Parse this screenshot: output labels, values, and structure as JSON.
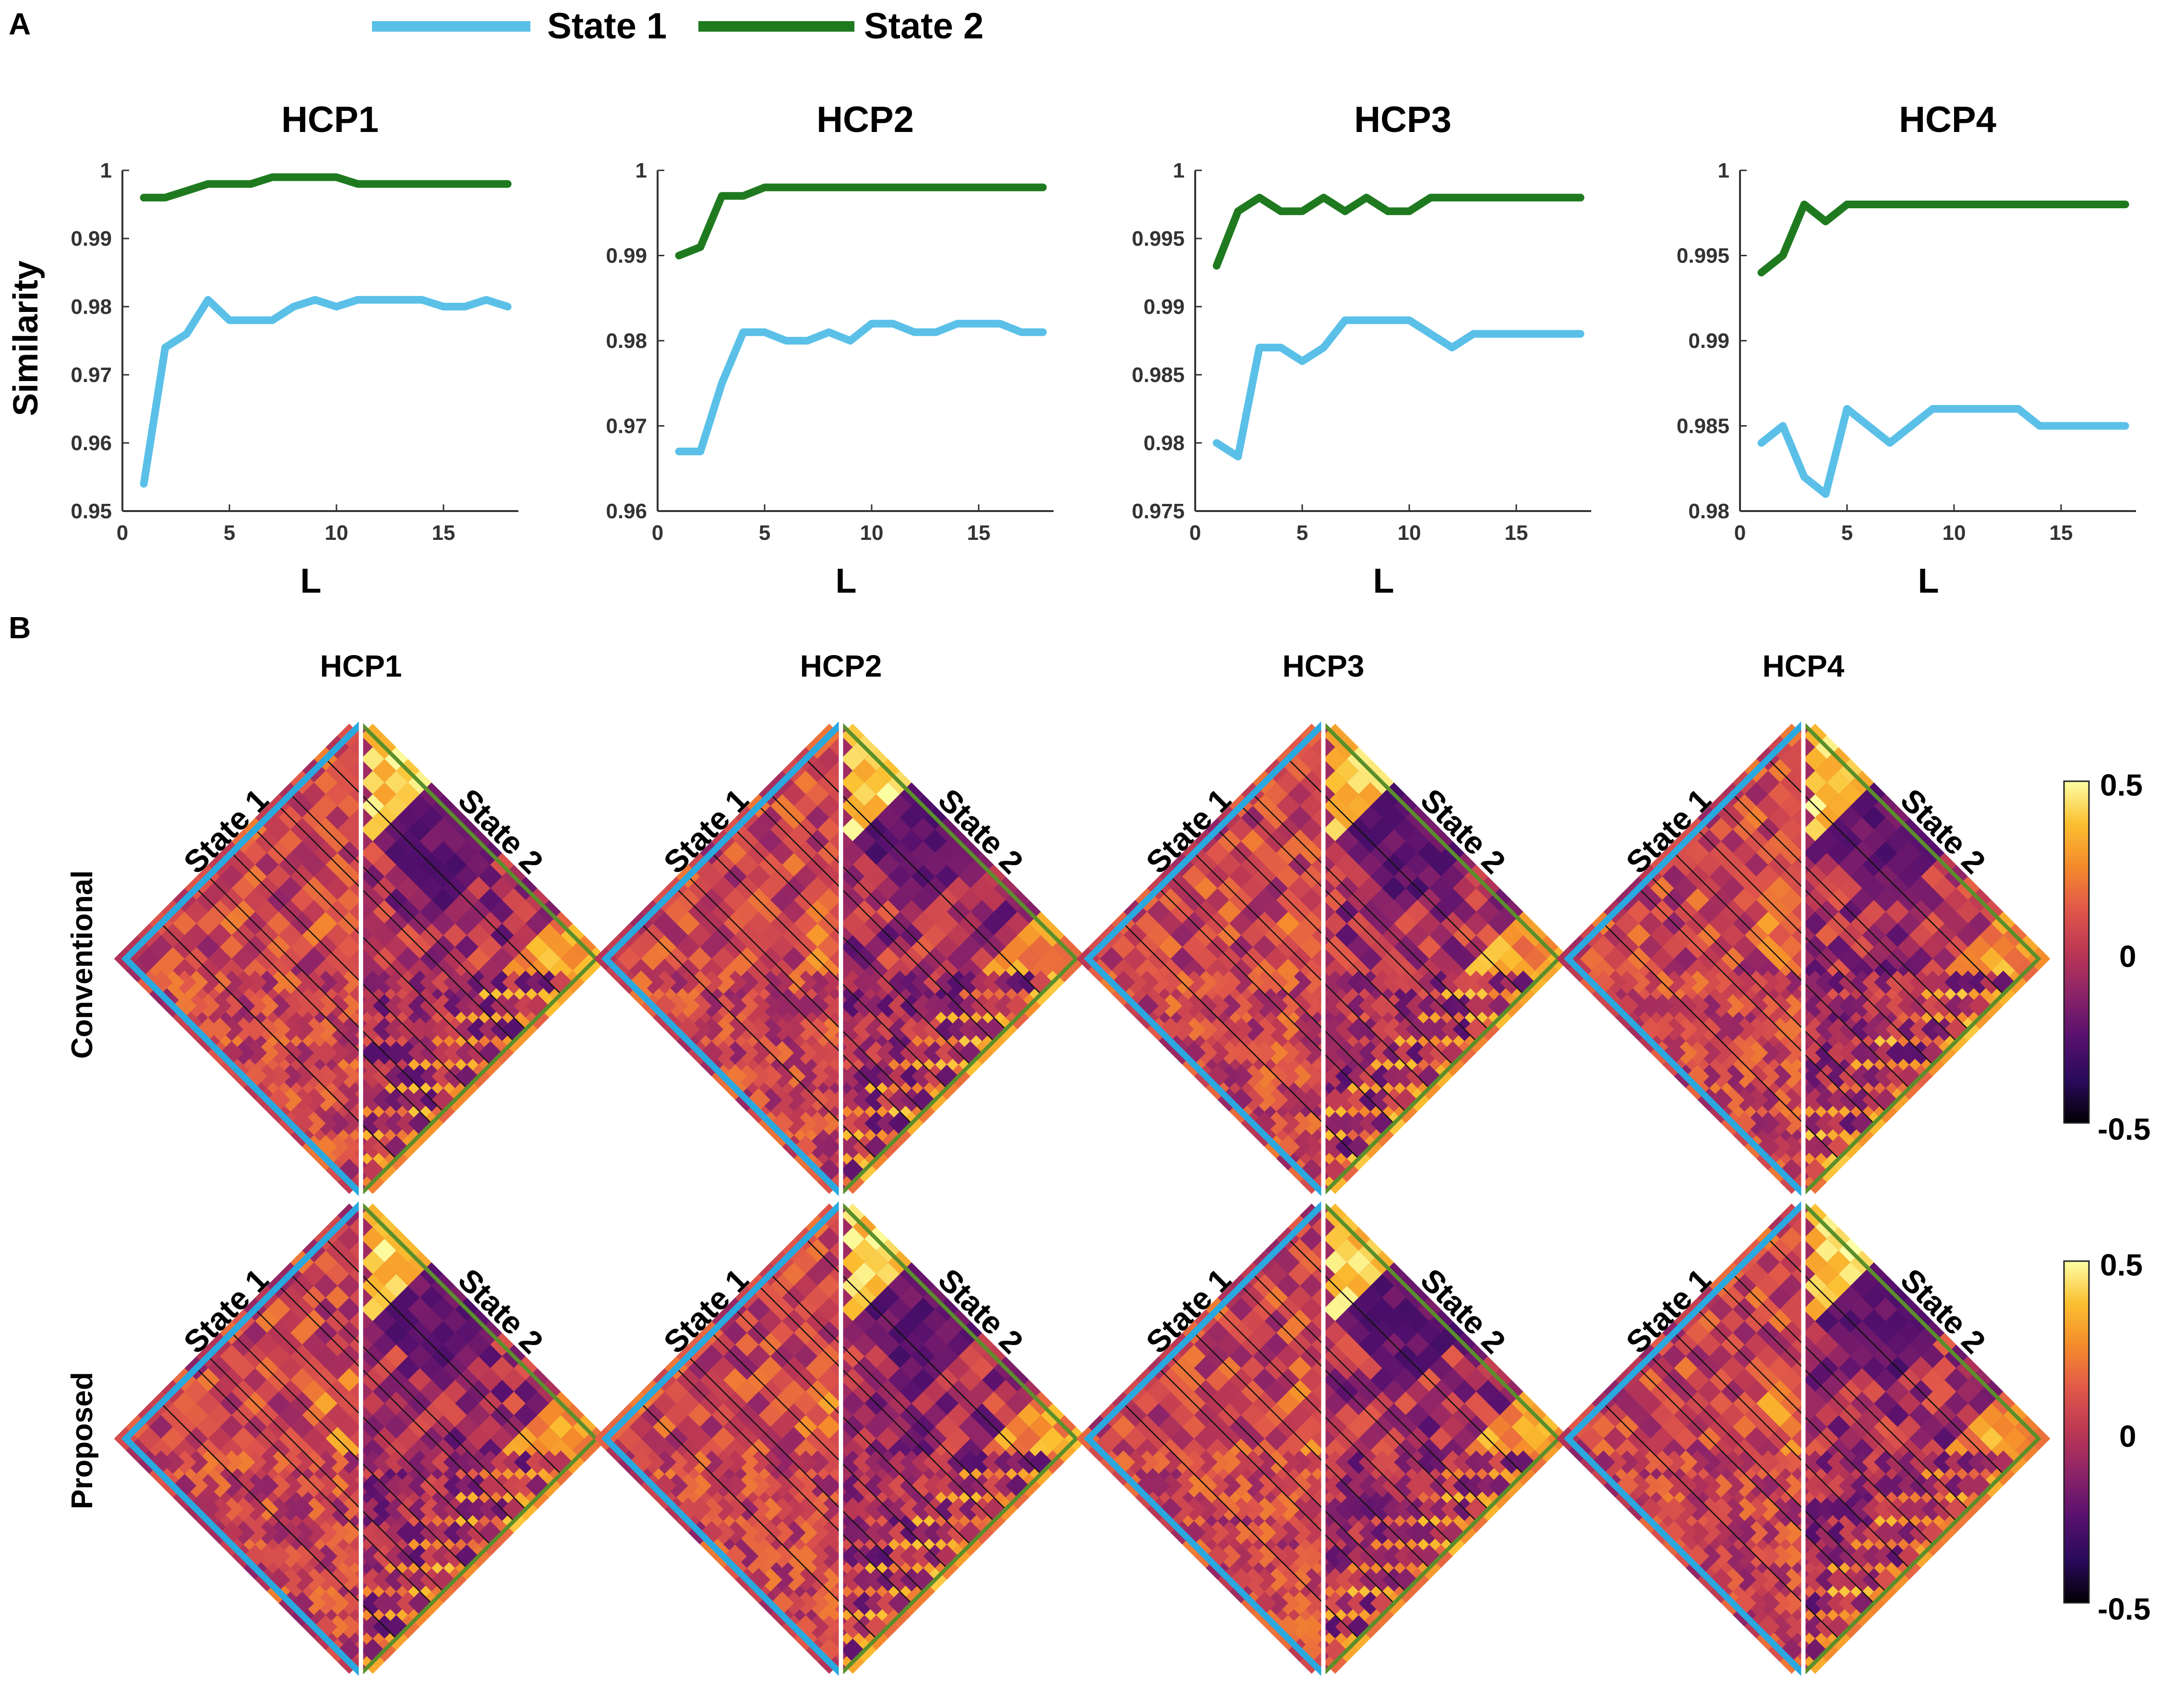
{
  "panels": {
    "a": "A",
    "b": "B"
  },
  "legend": [
    {
      "label": "State 1",
      "color": "#5bc0e8"
    },
    {
      "label": "State 2",
      "color": "#1f7a1f"
    }
  ],
  "colors": {
    "state1": "#5bc0e8",
    "state2": "#1f7a1f",
    "heatmap_border_state1": "#29a9e0",
    "heatmap_border_state2": "#5a8f2b",
    "colormap": [
      "#000004",
      "#2a0a5c",
      "#56106e",
      "#8c2369",
      "#bb3754",
      "#e1574a",
      "#f58a2c",
      "#fbbf2f",
      "#fcffa4"
    ]
  },
  "chart_data": [
    {
      "type": "line",
      "title": "HCP1",
      "xlabel": "L",
      "ylabel": "Similarity",
      "xlim": [
        0,
        18.5
      ],
      "ylim": [
        0.95,
        1
      ],
      "xticks": [
        0,
        5,
        10,
        15
      ],
      "yticks": [
        "0.95",
        "0.96",
        "0.97",
        "0.98",
        "0.99",
        "1"
      ],
      "x": [
        1,
        2,
        3,
        4,
        5,
        6,
        7,
        8,
        9,
        10,
        11,
        12,
        13,
        14,
        15,
        16,
        17,
        18
      ],
      "series": [
        {
          "name": "State 1",
          "values": [
            0.954,
            0.974,
            0.976,
            0.981,
            0.978,
            0.978,
            0.978,
            0.98,
            0.981,
            0.98,
            0.981,
            0.981,
            0.981,
            0.981,
            0.98,
            0.98,
            0.981,
            0.98
          ]
        },
        {
          "name": "State 2",
          "values": [
            0.996,
            0.996,
            0.997,
            0.998,
            0.998,
            0.998,
            0.999,
            0.999,
            0.999,
            0.999,
            0.998,
            0.998,
            0.998,
            0.998,
            0.998,
            0.998,
            0.998,
            0.998
          ]
        }
      ]
    },
    {
      "type": "line",
      "title": "HCP2",
      "xlabel": "L",
      "ylabel": "",
      "xlim": [
        0,
        18.5
      ],
      "ylim": [
        0.96,
        1
      ],
      "xticks": [
        0,
        5,
        10,
        15
      ],
      "yticks": [
        "0.96",
        "0.97",
        "0.98",
        "0.99",
        "1"
      ],
      "x": [
        1,
        2,
        3,
        4,
        5,
        6,
        7,
        8,
        9,
        10,
        11,
        12,
        13,
        14,
        15,
        16,
        17,
        18
      ],
      "series": [
        {
          "name": "State 1",
          "values": [
            0.967,
            0.967,
            0.975,
            0.981,
            0.981,
            0.98,
            0.98,
            0.981,
            0.98,
            0.982,
            0.982,
            0.981,
            0.981,
            0.982,
            0.982,
            0.982,
            0.981,
            0.981
          ]
        },
        {
          "name": "State 2",
          "values": [
            0.99,
            0.991,
            0.997,
            0.997,
            0.998,
            0.998,
            0.998,
            0.998,
            0.998,
            0.998,
            0.998,
            0.998,
            0.998,
            0.998,
            0.998,
            0.998,
            0.998,
            0.998
          ]
        }
      ]
    },
    {
      "type": "line",
      "title": "HCP3",
      "xlabel": "L",
      "ylabel": "",
      "xlim": [
        0,
        18.5
      ],
      "ylim": [
        0.975,
        1
      ],
      "xticks": [
        0,
        5,
        10,
        15
      ],
      "yticks": [
        "0.975",
        "0.98",
        "0.985",
        "0.99",
        "0.995",
        "1"
      ],
      "x": [
        1,
        2,
        3,
        4,
        5,
        6,
        7,
        8,
        9,
        10,
        11,
        12,
        13,
        14,
        15,
        16,
        17,
        18
      ],
      "series": [
        {
          "name": "State 1",
          "values": [
            0.98,
            0.979,
            0.987,
            0.987,
            0.986,
            0.987,
            0.989,
            0.989,
            0.989,
            0.989,
            0.988,
            0.987,
            0.988,
            0.988,
            0.988,
            0.988,
            0.988,
            0.988
          ]
        },
        {
          "name": "State 2",
          "values": [
            0.993,
            0.997,
            0.998,
            0.997,
            0.997,
            0.998,
            0.997,
            0.998,
            0.997,
            0.997,
            0.998,
            0.998,
            0.998,
            0.998,
            0.998,
            0.998,
            0.998,
            0.998
          ]
        }
      ]
    },
    {
      "type": "line",
      "title": "HCP4",
      "xlabel": "L",
      "ylabel": "",
      "xlim": [
        0,
        18.5
      ],
      "ylim": [
        0.98,
        1
      ],
      "xticks": [
        0,
        5,
        10,
        15
      ],
      "yticks": [
        "0.98",
        "0.985",
        "0.99",
        "0.995",
        "1"
      ],
      "x": [
        1,
        2,
        3,
        4,
        5,
        6,
        7,
        8,
        9,
        10,
        11,
        12,
        13,
        14,
        15,
        16,
        17,
        18
      ],
      "series": [
        {
          "name": "State 1",
          "values": [
            0.984,
            0.985,
            0.982,
            0.981,
            0.986,
            0.985,
            0.984,
            0.985,
            0.986,
            0.986,
            0.986,
            0.986,
            0.986,
            0.985,
            0.985,
            0.985,
            0.985,
            0.985
          ]
        },
        {
          "name": "State 2",
          "values": [
            0.994,
            0.995,
            0.998,
            0.997,
            0.998,
            0.998,
            0.998,
            0.998,
            0.998,
            0.998,
            0.998,
            0.998,
            0.998,
            0.998,
            0.998,
            0.998,
            0.998,
            0.998
          ]
        }
      ]
    },
    {
      "type": "heatmap",
      "description_rows": [
        "Conventional",
        "Proposed"
      ],
      "columns": [
        "HCP1",
        "HCP2",
        "HCP3",
        "HCP4"
      ],
      "left_label": "State 1",
      "right_label": "State 2",
      "colorbar": {
        "min": -0.5,
        "max": 0.5,
        "ticks": [
          "0.5",
          "0",
          "-0.5"
        ]
      }
    }
  ]
}
